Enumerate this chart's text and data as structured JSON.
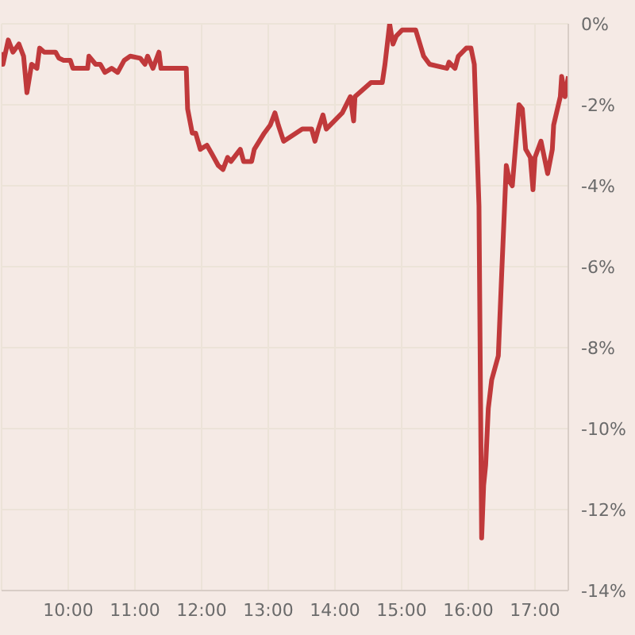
{
  "chart_data": {
    "type": "line",
    "color": "#c0393b",
    "grid": true,
    "marker": "none",
    "line_style": "solid",
    "x": [
      9.0,
      9.02,
      9.1,
      9.17,
      9.26,
      9.33,
      9.38,
      9.45,
      9.53,
      9.57,
      9.64,
      9.81,
      9.86,
      9.93,
      10.03,
      10.07,
      10.29,
      10.31,
      10.41,
      10.48,
      10.55,
      10.65,
      10.74,
      10.84,
      10.93,
      11.08,
      11.15,
      11.19,
      11.27,
      11.36,
      11.39,
      11.77,
      11.79,
      11.86,
      11.91,
      11.98,
      12.08,
      12.15,
      12.25,
      12.32,
      12.39,
      12.44,
      12.58,
      12.63,
      12.75,
      12.79,
      12.94,
      13.03,
      13.1,
      13.15,
      13.23,
      13.51,
      13.65,
      13.7,
      13.75,
      13.82,
      13.87,
      14.11,
      14.23,
      14.28,
      14.3,
      14.54,
      14.71,
      14.75,
      14.82,
      14.87,
      14.92,
      15.01,
      15.21,
      15.33,
      15.42,
      15.68,
      15.71,
      15.8,
      15.85,
      15.97,
      16.04,
      16.09,
      16.16,
      16.2,
      16.23,
      16.26,
      16.3,
      16.35,
      16.45,
      16.5,
      16.57,
      16.62,
      16.66,
      16.76,
      16.81,
      16.86,
      16.93,
      16.97,
      17.0,
      17.09,
      17.19,
      17.26,
      17.28,
      17.38,
      17.4,
      17.45,
      17.5
    ],
    "values": [
      -0.7,
      -1.0,
      -0.4,
      -0.7,
      -0.5,
      -0.8,
      -1.7,
      -1.0,
      -1.1,
      -0.6,
      -0.7,
      -0.7,
      -0.85,
      -0.9,
      -0.9,
      -1.1,
      -1.1,
      -0.8,
      -1.0,
      -1.0,
      -1.2,
      -1.1,
      -1.2,
      -0.9,
      -0.8,
      -0.85,
      -1.0,
      -0.8,
      -1.1,
      -0.7,
      -1.1,
      -1.1,
      -2.1,
      -2.7,
      -2.7,
      -3.1,
      -3.0,
      -3.2,
      -3.5,
      -3.6,
      -3.3,
      -3.4,
      -3.1,
      -3.4,
      -3.4,
      -3.1,
      -2.7,
      -2.5,
      -2.2,
      -2.5,
      -2.9,
      -2.6,
      -2.6,
      -2.9,
      -2.6,
      -2.25,
      -2.6,
      -2.2,
      -1.8,
      -2.4,
      -1.8,
      -1.45,
      -1.45,
      -1.0,
      0,
      -0.5,
      -0.3,
      -0.15,
      -0.15,
      -0.8,
      -1.0,
      -1.1,
      -0.95,
      -1.1,
      -0.8,
      -0.6,
      -0.6,
      -1.0,
      -4.5,
      -12.7,
      -11.4,
      -10.9,
      -9.5,
      -8.8,
      -8.2,
      -6.2,
      -3.5,
      -3.9,
      -4.0,
      -2.0,
      -2.1,
      -3.1,
      -3.3,
      -4.1,
      -3.3,
      -2.9,
      -3.7,
      -3.1,
      -2.5,
      -1.8,
      -1.3,
      -1.8,
      -1.3
    ],
    "xlim": [
      9,
      17.5
    ],
    "xticks": [
      {
        "value": 10,
        "label": "10:00"
      },
      {
        "value": 11,
        "label": "11:00"
      },
      {
        "value": 12,
        "label": "12:00"
      },
      {
        "value": 13,
        "label": "13:00"
      },
      {
        "value": 14,
        "label": "14:00"
      },
      {
        "value": 15,
        "label": "15:00"
      },
      {
        "value": 16,
        "label": "16:00"
      },
      {
        "value": 17,
        "label": "17:00"
      }
    ],
    "ylim": [
      -14,
      0
    ],
    "yticks": [
      {
        "value": 0,
        "label": "0%"
      },
      {
        "value": -2,
        "label": "-2%"
      },
      {
        "value": -4,
        "label": "-4%"
      },
      {
        "value": -6,
        "label": "-6%"
      },
      {
        "value": -8,
        "label": "-8%"
      },
      {
        "value": -10,
        "label": "-10%"
      },
      {
        "value": -12,
        "label": "-12%"
      },
      {
        "value": -14,
        "label": "-14%"
      }
    ]
  }
}
